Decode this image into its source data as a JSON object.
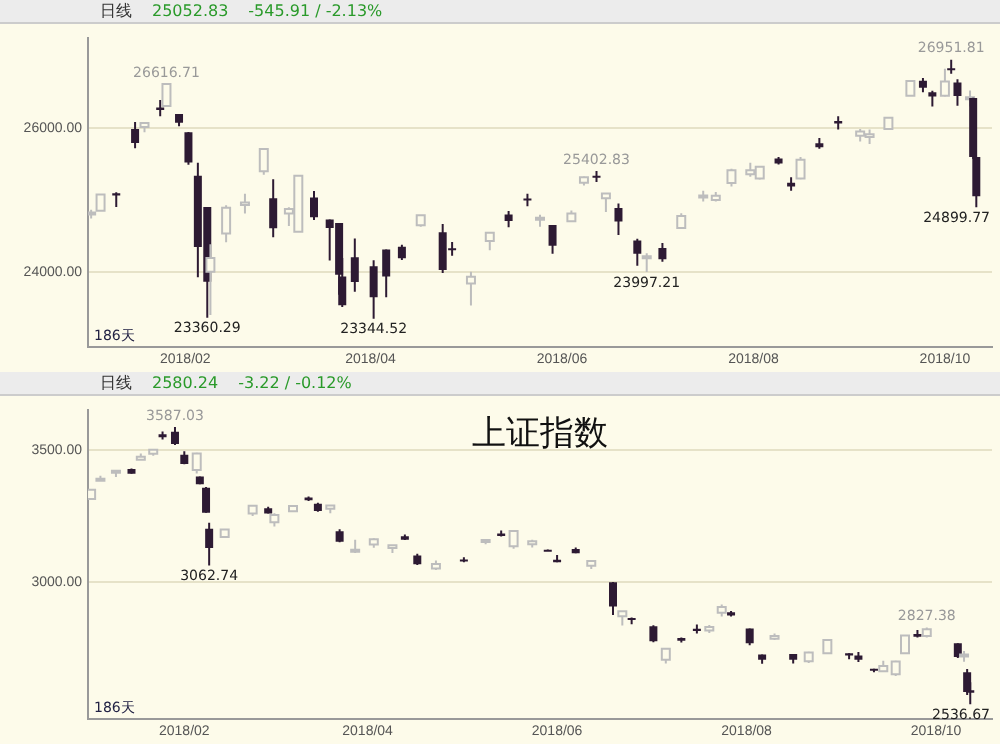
{
  "chart_data": [
    {
      "type": "candlestick",
      "x": [
        "2018-01-02",
        "2018-01-05",
        "2018-01-10",
        "2018-01-16",
        "2018-01-19",
        "2018-01-24",
        "2018-01-26",
        "2018-01-30",
        "2018-02-02",
        "2018-02-05",
        "2018-02-08",
        "2018-02-09",
        "2018-02-14",
        "2018-02-20",
        "2018-02-26",
        "2018-03-01",
        "2018-03-06",
        "2018-03-09",
        "2018-03-14",
        "2018-03-19",
        "2018-03-22",
        "2018-03-23",
        "2018-03-27",
        "2018-04-02",
        "2018-04-06",
        "2018-04-11",
        "2018-04-17",
        "2018-04-24",
        "2018-04-27",
        "2018-05-03",
        "2018-05-09",
        "2018-05-15",
        "2018-05-21",
        "2018-05-25",
        "2018-05-29",
        "2018-06-04",
        "2018-06-08",
        "2018-06-12",
        "2018-06-15",
        "2018-06-19",
        "2018-06-25",
        "2018-06-28",
        "2018-07-03",
        "2018-07-09",
        "2018-07-16",
        "2018-07-20",
        "2018-07-25",
        "2018-07-31",
        "2018-08-03",
        "2018-08-09",
        "2018-08-13",
        "2018-08-16",
        "2018-08-22",
        "2018-08-28",
        "2018-09-04",
        "2018-09-07",
        "2018-09-13",
        "2018-09-20",
        "2018-09-24",
        "2018-09-27",
        "2018-10-01",
        "2018-10-03",
        "2018-10-05",
        "2018-10-09",
        "2018-10-10",
        "2018-10-11"
      ],
      "ohlc": [
        [
          24809,
          24864,
          24741,
          24824
        ],
        [
          24850,
          25075,
          24850,
          25075
        ],
        [
          25094,
          25109,
          24903,
          25063
        ],
        [
          25987,
          26086,
          25722,
          25792
        ],
        [
          26016,
          26072,
          25942,
          26071
        ],
        [
          26289,
          26392,
          26165,
          26252
        ],
        [
          26310,
          26616.71,
          26300,
          26616
        ],
        [
          26198,
          26198,
          26028,
          26076
        ],
        [
          25943,
          25945,
          25490,
          25521
        ],
        [
          25338,
          25520,
          23924,
          24345
        ],
        [
          24903,
          24903,
          23360.29,
          23860
        ],
        [
          24000,
          24382,
          23400,
          24191
        ],
        [
          24535,
          24925,
          24410,
          24893
        ],
        [
          24931,
          25086,
          24813,
          24964
        ],
        [
          25401,
          25709,
          25350,
          25709
        ],
        [
          25025,
          25290,
          24480,
          24608
        ],
        [
          24811,
          24898,
          24637,
          24874
        ],
        [
          24558,
          25336,
          24558,
          25336
        ],
        [
          25035,
          25124,
          24722,
          24759
        ],
        [
          24728,
          24728,
          24157,
          24610
        ],
        [
          24680,
          24680,
          23680,
          23958
        ],
        [
          23933,
          24193,
          23509,
          23533
        ],
        [
          24202,
          24462,
          23722,
          23858
        ],
        [
          24076,
          24160,
          23344.52,
          23644
        ],
        [
          24311,
          24311,
          23645,
          23933
        ],
        [
          24350,
          24376,
          24163,
          24189
        ],
        [
          24648,
          24786,
          24628,
          24786
        ],
        [
          24550,
          24664,
          23983,
          24024
        ],
        [
          24327,
          24415,
          24223,
          24311
        ],
        [
          23838,
          24000,
          23531,
          23930
        ],
        [
          24429,
          24542,
          24300,
          24542
        ],
        [
          24799,
          24846,
          24622,
          24706
        ],
        [
          25019,
          25086,
          24913,
          25013
        ],
        [
          24727,
          24794,
          24627,
          24753
        ],
        [
          24652,
          24652,
          24252,
          24361
        ],
        [
          24704,
          24852,
          24700,
          24813
        ],
        [
          25239,
          25326,
          25202,
          25316
        ],
        [
          25336,
          25402.83,
          25252,
          25320
        ],
        [
          25024,
          25096,
          24831,
          25090
        ],
        [
          24890,
          24952,
          24511,
          24700
        ],
        [
          24436,
          24461,
          24084,
          24252
        ],
        [
          24199,
          24259,
          23997.21,
          24217
        ],
        [
          24330,
          24400,
          24140,
          24174
        ],
        [
          24610,
          24815,
          24610,
          24776
        ],
        [
          25041,
          25128,
          24980,
          25064
        ],
        [
          25000,
          25112,
          24978,
          25058
        ],
        [
          25236,
          25434,
          25186,
          25415
        ],
        [
          25360,
          25519,
          25322,
          25415
        ],
        [
          25300,
          25474,
          25286,
          25463
        ],
        [
          25579,
          25597,
          25494,
          25509
        ],
        [
          25241,
          25316,
          25130,
          25187
        ],
        [
          25298,
          25600,
          25290,
          25559
        ],
        [
          25789,
          25862,
          25713,
          25733
        ],
        [
          26100,
          26167,
          25982,
          26064
        ],
        [
          25896,
          25988,
          25815,
          25952
        ],
        [
          25876,
          25982,
          25778,
          25917
        ],
        [
          25987,
          26154,
          25978,
          26145
        ],
        [
          26452,
          26657,
          26450,
          26657
        ],
        [
          26660,
          26700,
          26500,
          26562
        ],
        [
          26500,
          26520,
          26300,
          26440
        ],
        [
          26451,
          26828,
          26440,
          26651
        ],
        [
          26833,
          26951.81,
          26759,
          26828
        ],
        [
          26637,
          26680,
          26312,
          26447
        ],
        [
          26424,
          26525,
          26300,
          26431
        ],
        [
          26421,
          26423,
          25571,
          25598
        ],
        [
          25599,
          25600,
          24899.77,
          25052.83
        ]
      ],
      "xlim": [
        "2018-01-01",
        "2018-10-16"
      ],
      "xticks": [
        {
          "value": "2018-02-01",
          "label": "2018/02"
        },
        {
          "value": "2018-04-01",
          "label": "2018/04"
        },
        {
          "value": "2018-06-01",
          "label": "2018/06"
        },
        {
          "value": "2018-08-01",
          "label": "2018/08"
        },
        {
          "value": "2018-10-01",
          "label": "2018/10"
        }
      ],
      "ylim": [
        22950,
        27250
      ],
      "yticks": [
        {
          "value": 24000,
          "label": "24000.00"
        },
        {
          "value": 26000,
          "label": "26000.00"
        }
      ],
      "grid": "y",
      "annotations": [
        "日线",
        "25052.83",
        "-545.91 / -2.13%",
        "186天",
        {
          "text": "26616.71",
          "x": "2018-01-26",
          "y": 26616.71
        },
        {
          "text": "23360.29",
          "x": "2018-02-08",
          "y": 23360.29
        },
        {
          "text": "23344.52",
          "x": "2018-04-02",
          "y": 23344.52
        },
        {
          "text": "25402.83",
          "x": "2018-06-12",
          "y": 25402.83
        },
        {
          "text": "23997.21",
          "x": "2018-06-28",
          "y": 23997.21
        },
        {
          "text": "26951.81",
          "x": "2018-10-03",
          "y": 26951.81
        },
        {
          "text": "24899.77",
          "x": "2018-10-11",
          "y": 24899.77
        }
      ]
    },
    {
      "type": "candlestick",
      "title": "上证指数",
      "x": [
        "2018-01-02",
        "2018-01-05",
        "2018-01-10",
        "2018-01-15",
        "2018-01-18",
        "2018-01-22",
        "2018-01-25",
        "2018-01-29",
        "2018-02-01",
        "2018-02-05",
        "2018-02-06",
        "2018-02-08",
        "2018-02-09",
        "2018-02-14",
        "2018-02-23",
        "2018-02-28",
        "2018-03-02",
        "2018-03-08",
        "2018-03-13",
        "2018-03-16",
        "2018-03-20",
        "2018-03-23",
        "2018-03-28",
        "2018-04-03",
        "2018-04-09",
        "2018-04-13",
        "2018-04-17",
        "2018-04-23",
        "2018-05-02",
        "2018-05-09",
        "2018-05-14",
        "2018-05-18",
        "2018-05-24",
        "2018-05-29",
        "2018-06-01",
        "2018-06-07",
        "2018-06-12",
        "2018-06-19",
        "2018-06-22",
        "2018-06-25",
        "2018-07-02",
        "2018-07-06",
        "2018-07-11",
        "2018-07-16",
        "2018-07-20",
        "2018-07-24",
        "2018-07-27",
        "2018-08-02",
        "2018-08-06",
        "2018-08-10",
        "2018-08-16",
        "2018-08-21",
        "2018-08-27",
        "2018-09-03",
        "2018-09-06",
        "2018-09-11",
        "2018-09-14",
        "2018-09-18",
        "2018-09-21",
        "2018-09-25",
        "2018-09-28",
        "2018-10-08",
        "2018-10-10",
        "2018-10-11",
        "2018-10-12"
      ],
      "ohlc": [
        [
          3314,
          3349,
          3314,
          3349
        ],
        [
          3386,
          3402,
          3386,
          3391
        ],
        [
          3414,
          3421,
          3398,
          3421
        ],
        [
          3428,
          3430,
          3410,
          3410
        ],
        [
          3463,
          3487,
          3463,
          3474
        ],
        [
          3486,
          3502,
          3478,
          3501
        ],
        [
          3560,
          3570,
          3540,
          3548
        ],
        [
          3569,
          3587.03,
          3519,
          3523
        ],
        [
          3482,
          3495,
          3446,
          3447
        ],
        [
          3424,
          3490,
          3411,
          3487
        ],
        [
          3400,
          3400,
          3370,
          3370
        ],
        [
          3357,
          3360,
          3262,
          3262
        ],
        [
          3202,
          3224,
          3062.74,
          3129
        ],
        [
          3170,
          3200,
          3168,
          3199
        ],
        [
          3259,
          3290,
          3250,
          3289
        ],
        [
          3279,
          3285,
          3259,
          3259
        ],
        [
          3226,
          3260,
          3210,
          3254
        ],
        [
          3268,
          3290,
          3265,
          3288
        ],
        [
          3320,
          3324,
          3307,
          3310
        ],
        [
          3296,
          3300,
          3266,
          3269
        ],
        [
          3277,
          3290,
          3260,
          3290
        ],
        [
          3192,
          3200,
          3150,
          3152
        ],
        [
          3117,
          3160,
          3110,
          3122
        ],
        [
          3142,
          3166,
          3130,
          3162
        ],
        [
          3129,
          3140,
          3110,
          3139
        ],
        [
          3173,
          3180,
          3159,
          3160
        ],
        [
          3100,
          3107,
          3064,
          3067
        ],
        [
          3051,
          3081,
          3045,
          3068
        ],
        [
          3085,
          3094,
          3075,
          3081
        ],
        [
          3152,
          3161,
          3143,
          3159
        ],
        [
          3184,
          3195,
          3172,
          3174
        ],
        [
          3135,
          3193,
          3126,
          3193
        ],
        [
          3143,
          3160,
          3131,
          3154
        ],
        [
          3122,
          3123,
          3117,
          3120
        ],
        [
          3084,
          3102,
          3075,
          3075
        ],
        [
          3125,
          3131,
          3109,
          3109
        ],
        [
          3061,
          3080,
          3049,
          3079
        ],
        [
          2999,
          3000,
          2875,
          2907
        ],
        [
          2870,
          2889,
          2835,
          2889
        ],
        [
          2863,
          2865,
          2840,
          2859
        ],
        [
          2832,
          2836,
          2772,
          2775
        ],
        [
          2705,
          2750,
          2691,
          2747
        ],
        [
          2788,
          2790,
          2771,
          2777
        ],
        [
          2823,
          2839,
          2805,
          2814
        ],
        [
          2816,
          2837,
          2807,
          2829
        ],
        [
          2883,
          2915,
          2869,
          2905
        ],
        [
          2885,
          2890,
          2869,
          2873
        ],
        [
          2824,
          2824,
          2760,
          2768
        ],
        [
          2725,
          2725,
          2690,
          2705
        ],
        [
          2785,
          2805,
          2780,
          2795
        ],
        [
          2727,
          2727,
          2691,
          2705
        ],
        [
          2700,
          2736,
          2693,
          2733
        ],
        [
          2730,
          2783,
          2730,
          2780
        ],
        [
          2730,
          2730,
          2707,
          2721
        ],
        [
          2721,
          2735,
          2697,
          2705
        ],
        [
          2671,
          2671,
          2658,
          2665
        ],
        [
          2662,
          2701,
          2662,
          2682
        ],
        [
          2650,
          2701,
          2644,
          2699
        ],
        [
          2730,
          2797,
          2727,
          2797
        ],
        [
          2803,
          2818,
          2790,
          2792
        ],
        [
          2795,
          2827.38,
          2790,
          2821
        ],
        [
          2768,
          2768,
          2712,
          2716
        ],
        [
          2719,
          2738,
          2698,
          2725
        ],
        [
          2658,
          2670,
          2572,
          2583
        ],
        [
          2590,
          2620,
          2536.67,
          2580.24
        ]
      ],
      "xlim": [
        "2018-01-01",
        "2018-10-19"
      ],
      "xticks": [
        {
          "value": "2018-02-01",
          "label": "2018/02"
        },
        {
          "value": "2018-04-01",
          "label": "2018/04"
        },
        {
          "value": "2018-06-01",
          "label": "2018/06"
        },
        {
          "value": "2018-08-01",
          "label": "2018/08"
        },
        {
          "value": "2018-10-01",
          "label": "2018/10"
        }
      ],
      "ylim": [
        2480,
        3650
      ],
      "yticks": [
        {
          "value": 3000,
          "label": "3000.00"
        },
        {
          "value": 3500,
          "label": "3500.00"
        }
      ],
      "grid": "y",
      "annotations": [
        "日线",
        "2580.24",
        "-3.22 / -0.12%",
        "186天",
        {
          "text": "3587.03",
          "x": "2018-01-29",
          "y": 3587.03
        },
        {
          "text": "3062.74",
          "x": "2018-02-09",
          "y": 3062.74
        },
        {
          "text": "2827.38",
          "x": "2018-09-28",
          "y": 2827.38
        },
        {
          "text": "2536.67",
          "x": "2018-10-12",
          "y": 2536.67
        }
      ]
    }
  ]
}
